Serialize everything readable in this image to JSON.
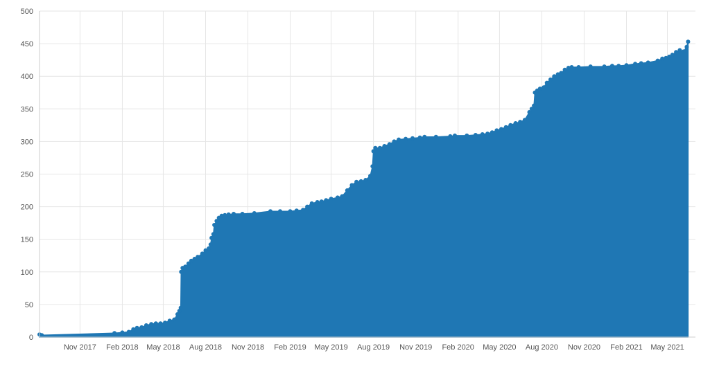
{
  "chart_data": {
    "type": "area",
    "title": "",
    "xlabel": "",
    "ylabel": "",
    "ylim": [
      0,
      500
    ],
    "xlim": [
      "2017-08-05",
      "2021-07-01"
    ],
    "grid": true,
    "legend": "none",
    "colors": {
      "fill": "#1f77b4",
      "grid": "#e6e6e6"
    },
    "y_ticks": [
      0,
      50,
      100,
      150,
      200,
      250,
      300,
      350,
      400,
      450,
      500
    ],
    "x_ticks": [
      {
        "date": "2017-11-01",
        "label": "Nov 2017"
      },
      {
        "date": "2018-02-01",
        "label": "Feb 2018"
      },
      {
        "date": "2018-05-01",
        "label": "May 2018"
      },
      {
        "date": "2018-08-01",
        "label": "Aug 2018"
      },
      {
        "date": "2018-11-01",
        "label": "Nov 2018"
      },
      {
        "date": "2019-02-01",
        "label": "Feb 2019"
      },
      {
        "date": "2019-05-01",
        "label": "May 2019"
      },
      {
        "date": "2019-08-01",
        "label": "Aug 2019"
      },
      {
        "date": "2019-11-01",
        "label": "Nov 2019"
      },
      {
        "date": "2020-02-01",
        "label": "Feb 2020"
      },
      {
        "date": "2020-05-01",
        "label": "May 2020"
      },
      {
        "date": "2020-08-01",
        "label": "Aug 2020"
      },
      {
        "date": "2020-11-01",
        "label": "Nov 2020"
      },
      {
        "date": "2021-02-01",
        "label": "Feb 2021"
      },
      {
        "date": "2021-05-01",
        "label": "May 2021"
      }
    ],
    "series": [
      {
        "points": [
          [
            "2017-08-05",
            4
          ],
          [
            "2017-08-10",
            3
          ],
          [
            "2018-01-15",
            6
          ],
          [
            "2018-02-01",
            7
          ],
          [
            "2018-02-15",
            8
          ],
          [
            "2018-02-25",
            12
          ],
          [
            "2018-03-05",
            14
          ],
          [
            "2018-03-15",
            15
          ],
          [
            "2018-03-25",
            18
          ],
          [
            "2018-04-05",
            20
          ],
          [
            "2018-04-15",
            21
          ],
          [
            "2018-04-25",
            21
          ],
          [
            "2018-05-05",
            22
          ],
          [
            "2018-05-15",
            25
          ],
          [
            "2018-05-25",
            27
          ],
          [
            "2018-06-01",
            35
          ],
          [
            "2018-06-05",
            40
          ],
          [
            "2018-06-08",
            45
          ],
          [
            "2018-06-09",
            100
          ],
          [
            "2018-06-12",
            106
          ],
          [
            "2018-06-18",
            108
          ],
          [
            "2018-06-25",
            113
          ],
          [
            "2018-07-01",
            117
          ],
          [
            "2018-07-08",
            120
          ],
          [
            "2018-07-15",
            123
          ],
          [
            "2018-07-25",
            128
          ],
          [
            "2018-08-01",
            133
          ],
          [
            "2018-08-08",
            136
          ],
          [
            "2018-08-12",
            142
          ],
          [
            "2018-08-14",
            152
          ],
          [
            "2018-08-18",
            158
          ],
          [
            "2018-08-20",
            172
          ],
          [
            "2018-08-25",
            178
          ],
          [
            "2018-08-30",
            183
          ],
          [
            "2018-09-05",
            186
          ],
          [
            "2018-09-12",
            187
          ],
          [
            "2018-09-20",
            188
          ],
          [
            "2018-10-01",
            189
          ],
          [
            "2018-10-20",
            189
          ],
          [
            "2018-11-15",
            190
          ],
          [
            "2018-12-20",
            193
          ],
          [
            "2019-01-10",
            193
          ],
          [
            "2019-02-01",
            193
          ],
          [
            "2019-02-15",
            194
          ],
          [
            "2019-03-01",
            195
          ],
          [
            "2019-03-10",
            200
          ],
          [
            "2019-03-20",
            205
          ],
          [
            "2019-04-01",
            207
          ],
          [
            "2019-04-10",
            208
          ],
          [
            "2019-04-20",
            210
          ],
          [
            "2019-05-01",
            212
          ],
          [
            "2019-05-15",
            214
          ],
          [
            "2019-05-25",
            216
          ],
          [
            "2019-06-05",
            225
          ],
          [
            "2019-06-15",
            233
          ],
          [
            "2019-06-25",
            238
          ],
          [
            "2019-07-05",
            239
          ],
          [
            "2019-07-15",
            241
          ],
          [
            "2019-07-25",
            247
          ],
          [
            "2019-07-30",
            262
          ],
          [
            "2019-08-01",
            285
          ],
          [
            "2019-08-05",
            290
          ],
          [
            "2019-08-15",
            290
          ],
          [
            "2019-08-25",
            293
          ],
          [
            "2019-09-05",
            296
          ],
          [
            "2019-09-15",
            300
          ],
          [
            "2019-09-25",
            303
          ],
          [
            "2019-10-10",
            304
          ],
          [
            "2019-10-25",
            305
          ],
          [
            "2019-11-10",
            306
          ],
          [
            "2019-11-20",
            307
          ],
          [
            "2019-12-15",
            307
          ],
          [
            "2020-01-15",
            308
          ],
          [
            "2020-01-25",
            309
          ],
          [
            "2020-02-20",
            309
          ],
          [
            "2020-03-10",
            310
          ],
          [
            "2020-03-25",
            311
          ],
          [
            "2020-04-05",
            312
          ],
          [
            "2020-04-15",
            314
          ],
          [
            "2020-04-25",
            317
          ],
          [
            "2020-05-05",
            319
          ],
          [
            "2020-05-15",
            322
          ],
          [
            "2020-05-25",
            325
          ],
          [
            "2020-06-05",
            328
          ],
          [
            "2020-06-15",
            330
          ],
          [
            "2020-06-25",
            333
          ],
          [
            "2020-07-05",
            345
          ],
          [
            "2020-07-10",
            350
          ],
          [
            "2020-07-15",
            355
          ],
          [
            "2020-07-17",
            375
          ],
          [
            "2020-07-22",
            378
          ],
          [
            "2020-07-28",
            381
          ],
          [
            "2020-08-05",
            383
          ],
          [
            "2020-08-12",
            390
          ],
          [
            "2020-08-20",
            395
          ],
          [
            "2020-08-28",
            400
          ],
          [
            "2020-09-05",
            403
          ],
          [
            "2020-09-12",
            405
          ],
          [
            "2020-09-20",
            410
          ],
          [
            "2020-09-28",
            413
          ],
          [
            "2020-10-05",
            414
          ],
          [
            "2020-10-20",
            414
          ],
          [
            "2020-11-15",
            415
          ],
          [
            "2020-12-15",
            415
          ],
          [
            "2021-01-01",
            416
          ],
          [
            "2021-01-15",
            416
          ],
          [
            "2021-02-01",
            417
          ],
          [
            "2021-02-20",
            419
          ],
          [
            "2021-03-05",
            420
          ],
          [
            "2021-03-20",
            421
          ],
          [
            "2021-04-10",
            424
          ],
          [
            "2021-04-20",
            427
          ],
          [
            "2021-04-28",
            428
          ],
          [
            "2021-05-05",
            430
          ],
          [
            "2021-05-12",
            433
          ],
          [
            "2021-05-20",
            437
          ],
          [
            "2021-05-28",
            440
          ],
          [
            "2021-06-05",
            438
          ],
          [
            "2021-06-12",
            445
          ],
          [
            "2021-06-15",
            453
          ]
        ]
      }
    ]
  }
}
